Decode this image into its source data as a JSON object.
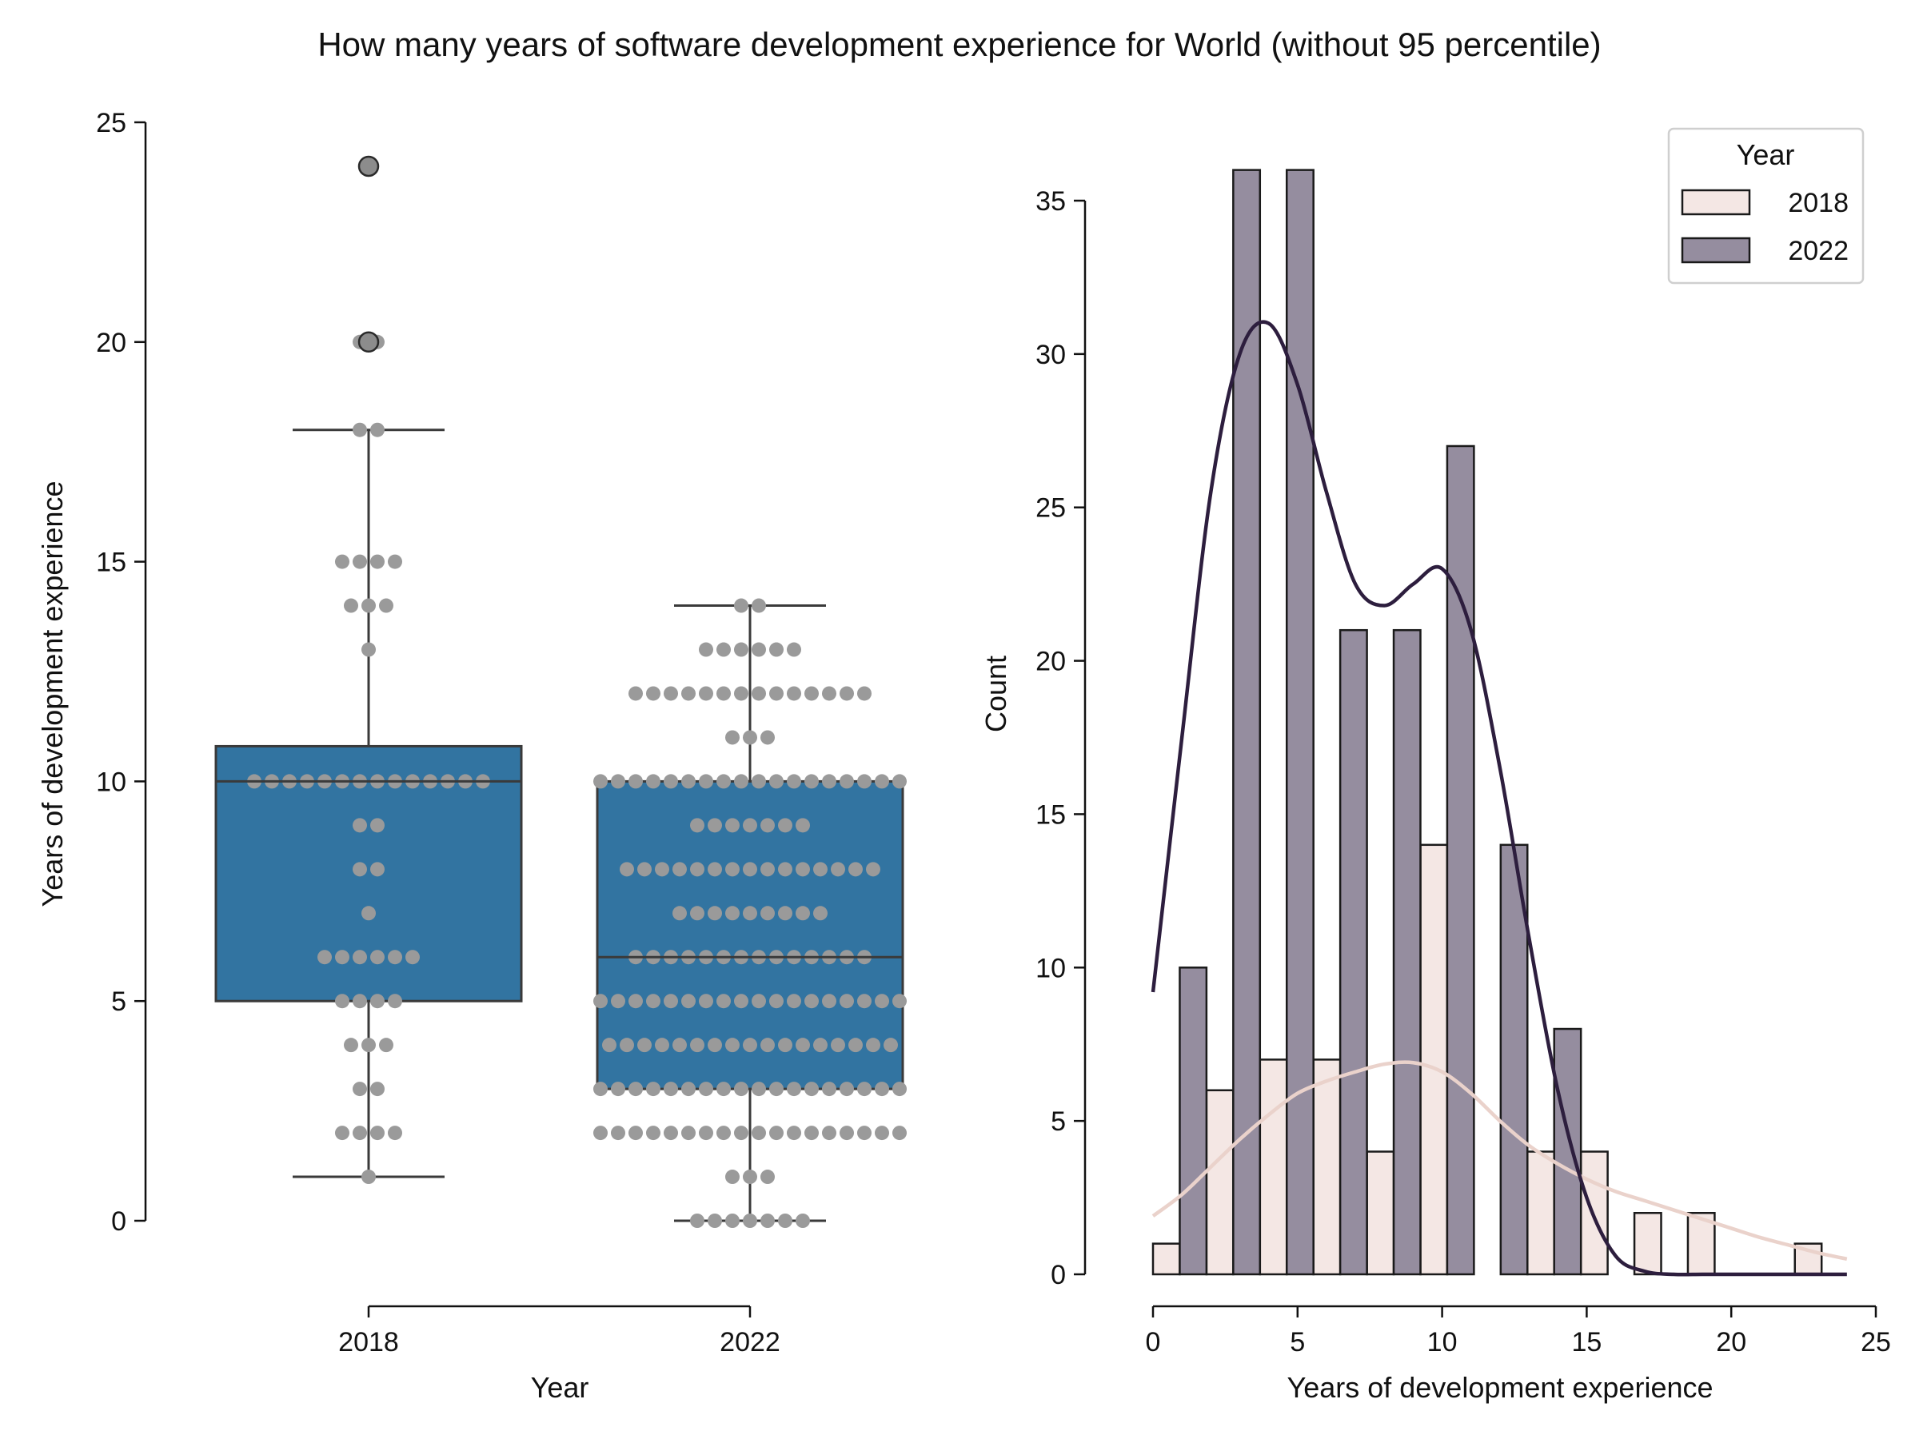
{
  "figure": {
    "title": "How many years of software development experience for World (without 95 percentile)"
  },
  "colors": {
    "box_fill": "#3274a1",
    "box_edge": "#3a3a3a",
    "swarm_dot": "#9a9a9a",
    "flier_fill": "#8c8c8c",
    "hist_2018": "#f4e7e4",
    "hist_2022": "#958d9f",
    "kde_2018": "#ead2cb",
    "kde_2022": "#2d1e3e",
    "bar_edge": "#1a1a1a"
  },
  "chart_data": [
    {
      "type": "box",
      "subtype": "box-with-swarm",
      "xlabel": "Year",
      "ylabel": "Years of development experience",
      "categories": [
        "2018",
        "2022"
      ],
      "ylim": [
        0,
        25
      ],
      "yticks": [
        0,
        5,
        10,
        15,
        20,
        25
      ],
      "grid": false,
      "boxes": [
        {
          "category": "2018",
          "whisker_low": 1,
          "q1": 5,
          "median": 10,
          "q3": 10.8,
          "whisker_high": 18,
          "fliers": [
            20,
            24
          ]
        },
        {
          "category": "2022",
          "whisker_low": 0,
          "q1": 3,
          "median": 6,
          "q3": 10,
          "whisker_high": 14,
          "fliers": []
        }
      ],
      "swarm_counts": {
        "2018": [
          [
            1,
            1
          ],
          [
            2,
            4
          ],
          [
            3,
            2
          ],
          [
            4,
            3
          ],
          [
            5,
            4
          ],
          [
            6,
            6
          ],
          [
            7,
            1
          ],
          [
            8,
            2
          ],
          [
            9,
            2
          ],
          [
            10,
            14
          ],
          [
            13,
            1
          ],
          [
            14,
            3
          ],
          [
            15,
            4
          ],
          [
            18,
            2
          ],
          [
            20,
            2
          ],
          [
            24,
            1
          ]
        ],
        "2022": [
          [
            0,
            7
          ],
          [
            1,
            3
          ],
          [
            2,
            18
          ],
          [
            3,
            18
          ],
          [
            4,
            17
          ],
          [
            5,
            18
          ],
          [
            6,
            14
          ],
          [
            7,
            9
          ],
          [
            8,
            15
          ],
          [
            9,
            7
          ],
          [
            10,
            18
          ],
          [
            11,
            3
          ],
          [
            12,
            14
          ],
          [
            13,
            6
          ],
          [
            14,
            2
          ]
        ]
      }
    },
    {
      "type": "histogram",
      "subtype": "histogram-with-kde",
      "xlabel": "Years of development experience",
      "ylabel": "Count",
      "xlim": [
        0,
        25
      ],
      "ylim": [
        0,
        37
      ],
      "xticks": [
        0,
        5,
        10,
        15,
        20,
        25
      ],
      "yticks": [
        0,
        5,
        10,
        15,
        20,
        25,
        30,
        35
      ],
      "grid": false,
      "legend": {
        "title": "Year",
        "placement": "top-right"
      },
      "bin_width": 1.85,
      "bins": [
        {
          "left": 0,
          "right": 0.925
        },
        {
          "left": 0.925,
          "right": 1.85
        },
        {
          "left": 1.85,
          "right": 2.775
        },
        {
          "left": 2.775,
          "right": 3.7
        },
        {
          "left": 3.7,
          "right": 4.625
        },
        {
          "left": 4.625,
          "right": 5.55
        },
        {
          "left": 5.55,
          "right": 6.475
        },
        {
          "left": 6.475,
          "right": 7.4
        },
        {
          "left": 7.4,
          "right": 8.325
        },
        {
          "left": 8.325,
          "right": 9.25
        },
        {
          "left": 9.25,
          "right": 10.175
        },
        {
          "left": 10.175,
          "right": 11.1
        },
        {
          "left": 11.1,
          "right": 12.025
        },
        {
          "left": 12.025,
          "right": 12.95
        },
        {
          "left": 12.95,
          "right": 13.875
        },
        {
          "left": 13.875,
          "right": 14.8
        },
        {
          "left": 14.8,
          "right": 15.725
        },
        {
          "left": 15.725,
          "right": 16.65
        },
        {
          "left": 16.65,
          "right": 17.575
        },
        {
          "left": 17.575,
          "right": 18.5
        },
        {
          "left": 18.5,
          "right": 19.425
        },
        {
          "left": 19.425,
          "right": 20.35
        },
        {
          "left": 20.35,
          "right": 21.275
        },
        {
          "left": 21.275,
          "right": 22.2
        },
        {
          "left": 22.2,
          "right": 23.125
        },
        {
          "left": 23.125,
          "right": 24.05
        }
      ],
      "series": [
        {
          "name": "2018",
          "bars": [
            {
              "left": 0,
              "right": 0.925,
              "count": 1
            },
            {
              "left": 1.85,
              "right": 2.775,
              "count": 6
            },
            {
              "left": 3.7,
              "right": 4.625,
              "count": 7
            },
            {
              "left": 5.55,
              "right": 6.475,
              "count": 7
            },
            {
              "left": 7.4,
              "right": 8.325,
              "count": 4
            },
            {
              "left": 9.25,
              "right": 10.175,
              "count": 14
            },
            {
              "left": 12.95,
              "right": 13.875,
              "count": 4
            },
            {
              "left": 14.8,
              "right": 15.725,
              "count": 4
            },
            {
              "left": 16.65,
              "right": 17.575,
              "count": 2
            },
            {
              "left": 18.5,
              "right": 19.425,
              "count": 2
            },
            {
              "left": 22.2,
              "right": 23.125,
              "count": 1
            }
          ],
          "kde": [
            [
              0,
              1.9
            ],
            [
              1,
              2.6
            ],
            [
              2,
              3.5
            ],
            [
              3,
              4.4
            ],
            [
              4,
              5.2
            ],
            [
              5,
              5.9
            ],
            [
              6,
              6.3
            ],
            [
              7,
              6.6
            ],
            [
              8,
              6.85
            ],
            [
              9,
              6.9
            ],
            [
              10,
              6.6
            ],
            [
              11,
              5.9
            ],
            [
              12,
              5.0
            ],
            [
              13,
              4.2
            ],
            [
              14,
              3.6
            ],
            [
              15,
              3.1
            ],
            [
              16,
              2.7
            ],
            [
              17,
              2.4
            ],
            [
              18,
              2.1
            ],
            [
              19,
              1.8
            ],
            [
              20,
              1.5
            ],
            [
              21,
              1.2
            ],
            [
              22,
              0.95
            ],
            [
              23,
              0.7
            ],
            [
              24,
              0.5
            ]
          ]
        },
        {
          "name": "2022",
          "bars": [
            {
              "left": 0.925,
              "right": 1.85,
              "count": 10
            },
            {
              "left": 2.775,
              "right": 3.7,
              "count": 36
            },
            {
              "left": 4.625,
              "right": 5.55,
              "count": 36
            },
            {
              "left": 6.475,
              "right": 7.4,
              "count": 21
            },
            {
              "left": 8.325,
              "right": 9.25,
              "count": 21
            },
            {
              "left": 10.175,
              "right": 11.1,
              "count": 27
            },
            {
              "left": 12.025,
              "right": 12.95,
              "count": 14
            },
            {
              "left": 13.875,
              "right": 14.8,
              "count": 8
            }
          ],
          "kde": [
            [
              0,
              9.2
            ],
            [
              1,
              17.5
            ],
            [
              2,
              25.5
            ],
            [
              3,
              30.0
            ],
            [
              4,
              31.0
            ],
            [
              5,
              29.0
            ],
            [
              6,
              25.5
            ],
            [
              7,
              22.5
            ],
            [
              8,
              21.8
            ],
            [
              9,
              22.5
            ],
            [
              10,
              23.0
            ],
            [
              11,
              21.0
            ],
            [
              12,
              16.5
            ],
            [
              13,
              11.0
            ],
            [
              14,
              6.0
            ],
            [
              15,
              2.5
            ],
            [
              16,
              0.6
            ],
            [
              17,
              0.1
            ],
            [
              18,
              0
            ],
            [
              19,
              0
            ],
            [
              20,
              0
            ],
            [
              21,
              0
            ],
            [
              22,
              0
            ],
            [
              23,
              0
            ],
            [
              24,
              0
            ]
          ]
        }
      ]
    }
  ]
}
